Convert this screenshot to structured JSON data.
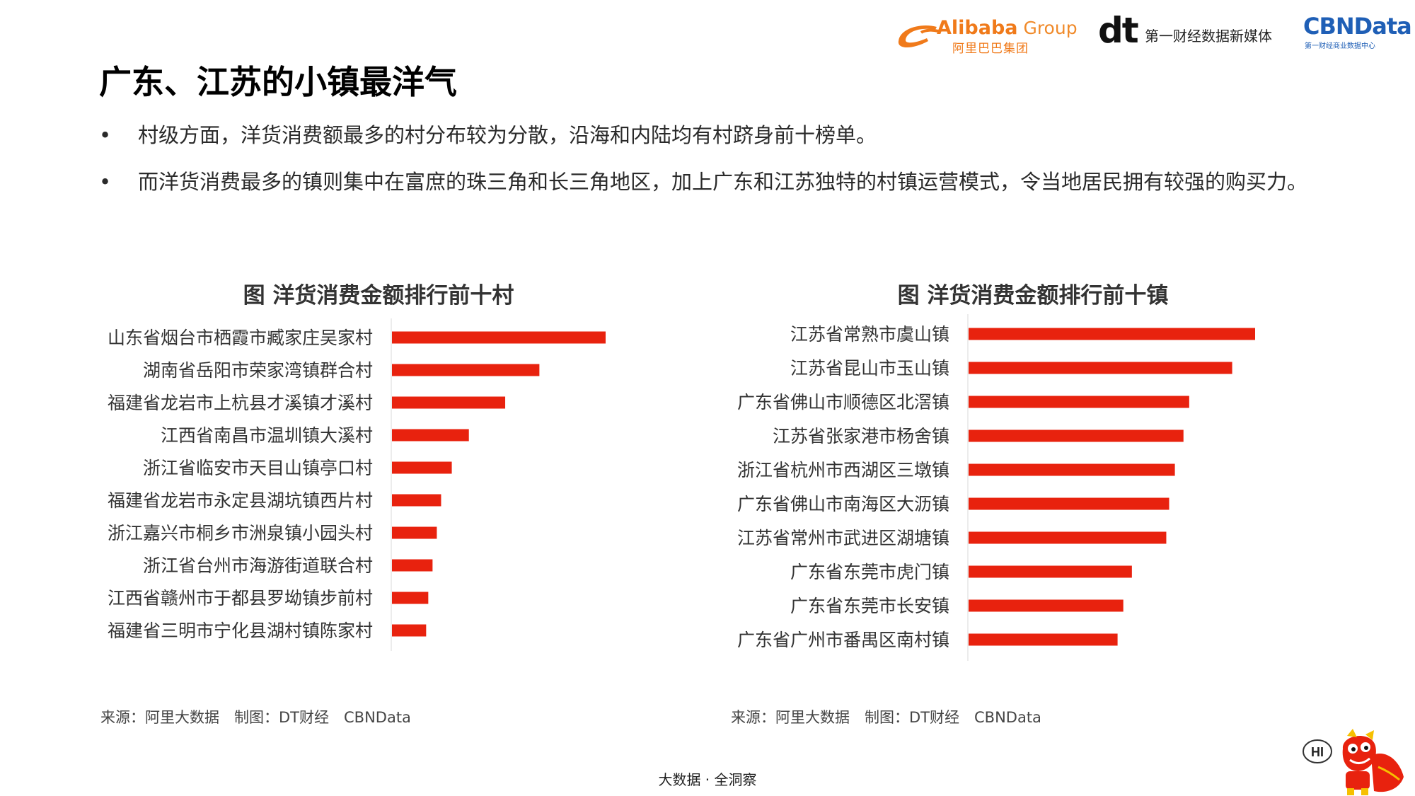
{
  "logos": {
    "alibaba_word": "Alibaba",
    "alibaba_group": " Group",
    "alibaba_cn": "阿里巴巴集团",
    "dt_word": "dt",
    "dt_cn": "第一财经数据新媒体",
    "cbn_word": "CBNData",
    "cbn_sub": "第一财经商业数据中心",
    "colors": {
      "alibaba": "#f07a1a",
      "cbn": "#1f5fb6"
    }
  },
  "title": "广东、江苏的小镇最洋气",
  "bullet_symbol": "•",
  "bullets": [
    "村级方面，洋货消费额最多的村分布较为分散，沿海和内陆均有村跻身前十榜单。",
    "而洋货消费最多的镇则集中在富庶的珠三角和长三角地区，加上广东和江苏独特的村镇运营模式，令当地居民拥有较强的购买力。"
  ],
  "chart_data": [
    {
      "type": "bar",
      "orientation": "horizontal",
      "title": "图 洋货消费金额排行前十村",
      "categories": [
        "山东省烟台市栖霞市臧家庄吴家村",
        "湖南省岳阳市荣家湾镇群合村",
        "福建省龙岩市上杭县才溪镇才溪村",
        "江西省南昌市温圳镇大溪村",
        "浙江省临安市天目山镇亭口村",
        "福建省龙岩市永定县湖坑镇西片村",
        "浙江嘉兴市桐乡市洲泉镇小园头村",
        "浙江省台州市海游街道联合村",
        "江西省赣州市于都县罗坳镇步前村",
        "福建省三明市宁化县湖村镇陈家村"
      ],
      "values": [
        100,
        69,
        53,
        36,
        28,
        23,
        21,
        19,
        17,
        16
      ],
      "xlim": [
        0,
        100
      ],
      "value_axis_visible": false,
      "grid": false,
      "bar_color": "#e8220e"
    },
    {
      "type": "bar",
      "orientation": "horizontal",
      "title": "图 洋货消费金额排行前十镇",
      "categories": [
        "江苏省常熟市虞山镇",
        "江苏省昆山市玉山镇",
        "广东省佛山市顺德区北滘镇",
        "江苏省张家港市杨舍镇",
        "浙江省杭州市西湖区三墩镇",
        "广东省佛山市南海区大沥镇",
        "江苏省常州市武进区湖塘镇",
        "广东省东莞市虎门镇",
        "广东省东莞市长安镇",
        "广东省广州市番禺区南村镇"
      ],
      "values": [
        100,
        92,
        77,
        75,
        72,
        70,
        69,
        57,
        54,
        52
      ],
      "xlim": [
        0,
        100
      ],
      "value_axis_visible": false,
      "grid": false,
      "bar_color": "#e8220e"
    }
  ],
  "sources": [
    "来源：阿里大数据　制图：DT财经　CBNData",
    "来源：阿里大数据　制图：DT财经　CBNData"
  ],
  "footer": "大数据 · 全洞察",
  "mascot": {
    "text": "HI",
    "icon": "lion-dance-mascot-icon"
  }
}
